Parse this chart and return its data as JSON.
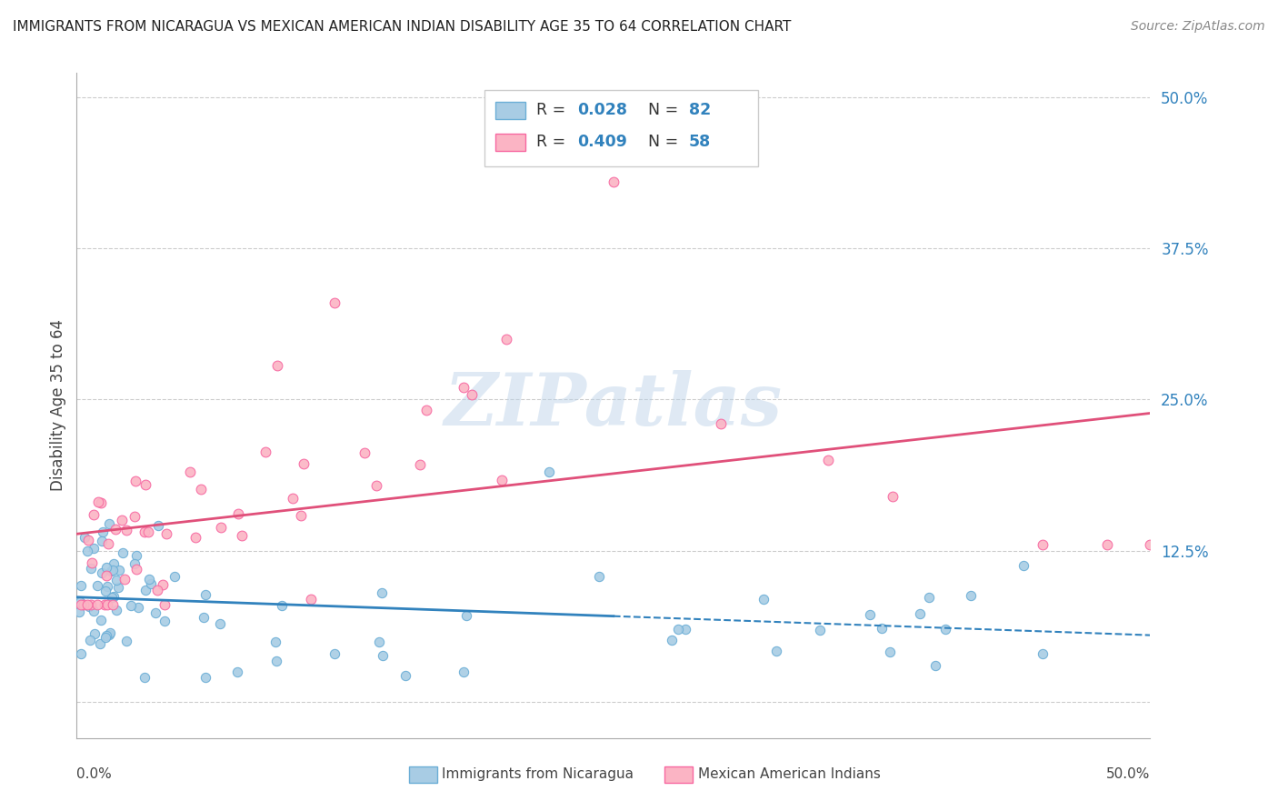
{
  "title": "IMMIGRANTS FROM NICARAGUA VS MEXICAN AMERICAN INDIAN DISABILITY AGE 35 TO 64 CORRELATION CHART",
  "source": "Source: ZipAtlas.com",
  "ylabel": "Disability Age 35 to 64",
  "color_blue": "#a8cce4",
  "color_blue_edge": "#6baed6",
  "color_pink": "#fbb4c4",
  "color_pink_edge": "#f768a1",
  "color_blue_line": "#3182bd",
  "color_pink_line": "#e0507a",
  "color_blue_text": "#3182bd",
  "color_pink_text": "#3182bd",
  "color_grid": "#cccccc",
  "watermark": "ZIPatlas",
  "footer_label1": "Immigrants from Nicaragua",
  "footer_label2": "Mexican American Indians",
  "xlim": [
    0.0,
    0.5
  ],
  "ylim": [
    -0.03,
    0.52
  ],
  "yticks": [
    0.0,
    0.125,
    0.25,
    0.375,
    0.5
  ],
  "ytick_labels": [
    "",
    "12.5%",
    "25.0%",
    "37.5%",
    "50.0%"
  ],
  "legend_R1": "0.028",
  "legend_N1": "82",
  "legend_R2": "0.409",
  "legend_N2": "58"
}
